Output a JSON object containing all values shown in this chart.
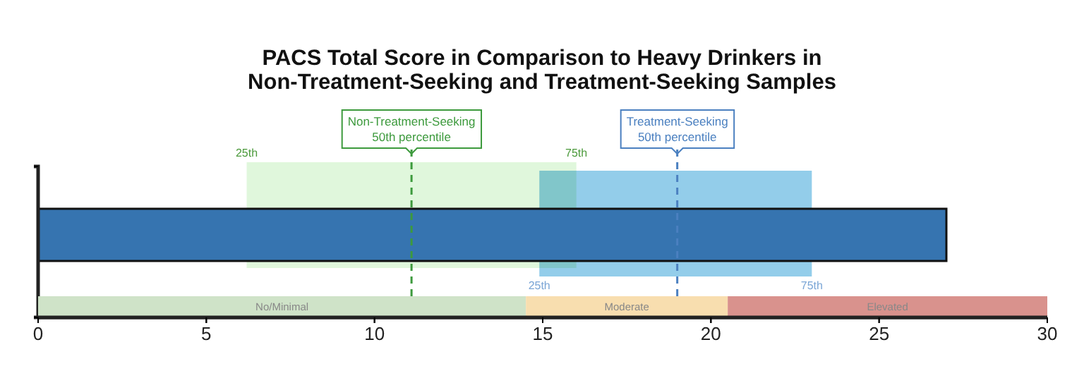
{
  "chart_data": [
    {
      "type": "bar",
      "orientation": "horizontal",
      "title": "PACS Total Score in Comparison to Heavy Drinkers in\nNon-Treatment-Seeking and Treatment-Seeking Samples",
      "categories": [
        null
      ],
      "values": [
        27.0
      ],
      "color": "#3674b0",
      "xlim": [
        0,
        30
      ],
      "xticks": [
        0,
        5,
        10,
        15,
        20,
        25,
        30
      ],
      "tick_labels": false,
      "bands": [
        {
          "axis": "x",
          "from": 6.2,
          "to": 16.0,
          "color": "#e0f7dc"
        },
        {
          "axis": "x",
          "from": 14.9,
          "to": 23.0,
          "color": "#93cdea"
        }
      ],
      "ref_lines": [
        {
          "axis": "x",
          "value": 11.1,
          "label": "Non-Treatment-Seeking\n50th percentile",
          "color": "#3d9a3d",
          "line_style": "dashed"
        },
        {
          "axis": "x",
          "value": 19.0,
          "label": "Treatment-Seeking\n50th percentile",
          "color": "#4b80c0",
          "line_style": "dashed"
        }
      ],
      "annotations": [
        "25th",
        "75th",
        "25th",
        "75th"
      ]
    },
    {
      "type": "bar",
      "orientation": "horizontal",
      "stacked": true,
      "categories": [
        null
      ],
      "series": [
        {
          "name": "No/Minimal",
          "color": "#cfe3c8",
          "values": [
            14.5
          ]
        },
        {
          "name": "Moderate",
          "color": "#f8deaf",
          "values": [
            6.0
          ]
        },
        {
          "name": "Elevated",
          "color": "#d9928d",
          "values": [
            9.5
          ]
        }
      ],
      "xlim": [
        0,
        30
      ],
      "xticks": [
        0,
        5,
        10,
        15,
        20,
        25,
        30
      ],
      "tick_labels": "x"
    }
  ]
}
